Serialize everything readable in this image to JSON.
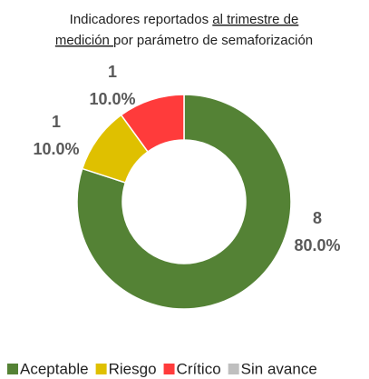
{
  "chart_data": {
    "type": "donut",
    "title_lines": [
      [
        "Indicadores reportados ",
        "al trimestre de"
      ],
      [
        "medición ",
        "por parámetro de semaforización"
      ]
    ],
    "categories": [
      "Aceptable",
      "Riesgo",
      "Crítico",
      "Sin avance"
    ],
    "values": [
      8,
      1,
      1,
      0
    ],
    "percent_labels": [
      "80.0%",
      "10.0%",
      "10.0%",
      null
    ],
    "colors": [
      "#548235",
      "#dfc000",
      "#ff3b3b",
      "#bfbfbf"
    ],
    "legend": "bottom"
  }
}
